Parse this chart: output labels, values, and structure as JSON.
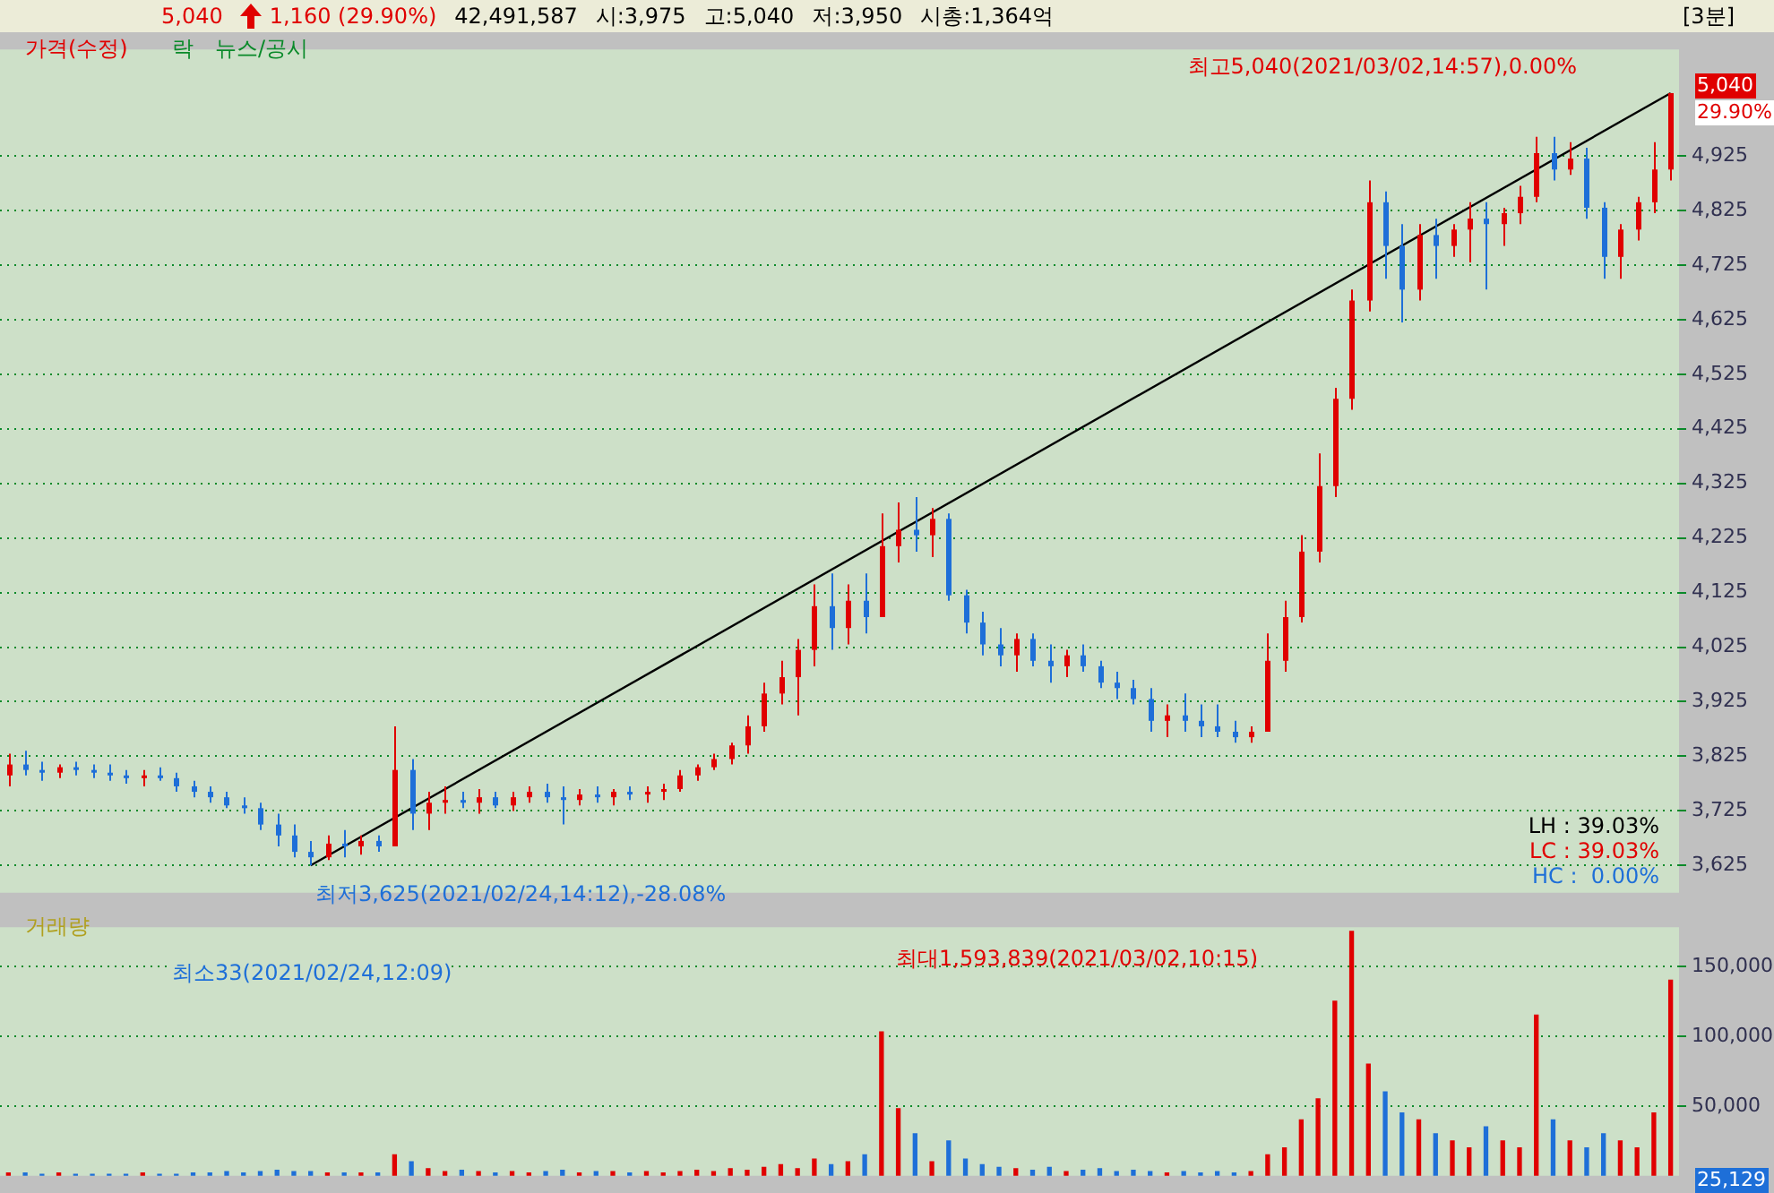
{
  "chart_data": [
    {
      "type": "candlestick",
      "annotations": [
        "5,040",
        "1,160 (29.90%)",
        "42,491,587",
        "시:3,975",
        "고:5,040",
        "저:3,950",
        "시총:1,364억",
        "[3분]",
        "가격(수정)",
        "락",
        "뉴스/공시",
        "LH : 39.03%",
        "LC : 39.03%",
        "HC :  0.00%",
        "29.90%",
        "5,040",
        "최고5,040(2021/03/02,14:57),0.00%",
        "최저3,625(2021/02/24,14:12),-28.08%"
      ],
      "categories": [
        null,
        null,
        null,
        null,
        null,
        null,
        null,
        null,
        null,
        null,
        null,
        null,
        null,
        null,
        null,
        null,
        null,
        null,
        null,
        null,
        null,
        null,
        null,
        null,
        null,
        null,
        null,
        null,
        null,
        null,
        null,
        null,
        null,
        null,
        null,
        null,
        null,
        null,
        null,
        null,
        null,
        null,
        null,
        null,
        null,
        null,
        null,
        null,
        null,
        null,
        null,
        null,
        null,
        null,
        null,
        null,
        null,
        null,
        null,
        null,
        null,
        null,
        null,
        null,
        null,
        null,
        null,
        null,
        null,
        null,
        null,
        null,
        null,
        null,
        null,
        null,
        null,
        null,
        null,
        null,
        null,
        null,
        null,
        null,
        null,
        null,
        null,
        null,
        null,
        null,
        null,
        null,
        null,
        null,
        null,
        null,
        null,
        null,
        null,
        null
      ],
      "ohlc": [
        [
          3790,
          3830,
          3770,
          3810
        ],
        [
          3810,
          3835,
          3790,
          3800
        ],
        [
          3800,
          3815,
          3780,
          3795
        ],
        [
          3795,
          3810,
          3785,
          3805
        ],
        [
          3805,
          3815,
          3790,
          3800
        ],
        [
          3800,
          3810,
          3785,
          3795
        ],
        [
          3795,
          3810,
          3780,
          3790
        ],
        [
          3790,
          3800,
          3775,
          3785
        ],
        [
          3785,
          3800,
          3770,
          3790
        ],
        [
          3790,
          3805,
          3780,
          3785
        ],
        [
          3785,
          3795,
          3760,
          3770
        ],
        [
          3770,
          3780,
          3750,
          3760
        ],
        [
          3760,
          3770,
          3740,
          3750
        ],
        [
          3750,
          3760,
          3730,
          3735
        ],
        [
          3735,
          3750,
          3720,
          3730
        ],
        [
          3730,
          3740,
          3690,
          3700
        ],
        [
          3700,
          3720,
          3660,
          3680
        ],
        [
          3680,
          3700,
          3640,
          3650
        ],
        [
          3650,
          3670,
          3625,
          3640
        ],
        [
          3640,
          3680,
          3635,
          3665
        ],
        [
          3665,
          3690,
          3640,
          3660
        ],
        [
          3660,
          3680,
          3645,
          3670
        ],
        [
          3670,
          3680,
          3650,
          3660
        ],
        [
          3660,
          3880,
          3660,
          3800
        ],
        [
          3800,
          3820,
          3690,
          3720
        ],
        [
          3720,
          3760,
          3690,
          3740
        ],
        [
          3740,
          3770,
          3720,
          3745
        ],
        [
          3745,
          3760,
          3730,
          3740
        ],
        [
          3740,
          3765,
          3720,
          3750
        ],
        [
          3750,
          3760,
          3730,
          3735
        ],
        [
          3735,
          3760,
          3725,
          3750
        ],
        [
          3750,
          3770,
          3740,
          3760
        ],
        [
          3760,
          3775,
          3740,
          3750
        ],
        [
          3750,
          3770,
          3700,
          3745
        ],
        [
          3745,
          3765,
          3735,
          3755
        ],
        [
          3755,
          3770,
          3740,
          3750
        ],
        [
          3750,
          3765,
          3735,
          3760
        ],
        [
          3760,
          3770,
          3745,
          3755
        ],
        [
          3755,
          3770,
          3740,
          3760
        ],
        [
          3760,
          3775,
          3745,
          3765
        ],
        [
          3765,
          3800,
          3760,
          3790
        ],
        [
          3790,
          3810,
          3780,
          3805
        ],
        [
          3805,
          3830,
          3800,
          3820
        ],
        [
          3820,
          3850,
          3810,
          3845
        ],
        [
          3845,
          3900,
          3830,
          3880
        ],
        [
          3880,
          3960,
          3870,
          3940
        ],
        [
          3940,
          4000,
          3920,
          3970
        ],
        [
          3970,
          4040,
          3900,
          4020
        ],
        [
          4020,
          4140,
          3990,
          4100
        ],
        [
          4100,
          4160,
          4020,
          4060
        ],
        [
          4060,
          4140,
          4030,
          4110
        ],
        [
          4110,
          4160,
          4050,
          4080
        ],
        [
          4080,
          4270,
          4080,
          4210
        ],
        [
          4210,
          4290,
          4180,
          4240
        ],
        [
          4240,
          4300,
          4200,
          4230
        ],
        [
          4230,
          4280,
          4190,
          4260
        ],
        [
          4260,
          4270,
          4110,
          4120
        ],
        [
          4120,
          4130,
          4050,
          4070
        ],
        [
          4070,
          4090,
          4010,
          4030
        ],
        [
          4030,
          4060,
          3990,
          4010
        ],
        [
          4010,
          4050,
          3980,
          4040
        ],
        [
          4040,
          4050,
          3990,
          4000
        ],
        [
          4000,
          4030,
          3960,
          3990
        ],
        [
          3990,
          4020,
          3970,
          4010
        ],
        [
          4010,
          4030,
          3980,
          3990
        ],
        [
          3990,
          4000,
          3950,
          3960
        ],
        [
          3960,
          3980,
          3930,
          3950
        ],
        [
          3950,
          3965,
          3920,
          3930
        ],
        [
          3930,
          3950,
          3870,
          3890
        ],
        [
          3890,
          3920,
          3860,
          3900
        ],
        [
          3900,
          3940,
          3870,
          3890
        ],
        [
          3890,
          3920,
          3860,
          3880
        ],
        [
          3880,
          3920,
          3860,
          3870
        ],
        [
          3870,
          3890,
          3850,
          3860
        ],
        [
          3860,
          3880,
          3850,
          3870
        ],
        [
          3870,
          4050,
          3870,
          4000
        ],
        [
          4000,
          4110,
          3980,
          4080
        ],
        [
          4080,
          4230,
          4070,
          4200
        ],
        [
          4200,
          4380,
          4180,
          4320
        ],
        [
          4320,
          4500,
          4300,
          4480
        ],
        [
          4480,
          4680,
          4460,
          4660
        ],
        [
          4660,
          4880,
          4640,
          4840
        ],
        [
          4840,
          4860,
          4700,
          4760
        ],
        [
          4760,
          4800,
          4620,
          4680
        ],
        [
          4680,
          4800,
          4660,
          4780
        ],
        [
          4780,
          4810,
          4700,
          4760
        ],
        [
          4760,
          4800,
          4740,
          4790
        ],
        [
          4790,
          4840,
          4730,
          4810
        ],
        [
          4810,
          4840,
          4680,
          4800
        ],
        [
          4800,
          4830,
          4760,
          4820
        ],
        [
          4820,
          4870,
          4800,
          4850
        ],
        [
          4850,
          4960,
          4840,
          4930
        ],
        [
          4930,
          4960,
          4880,
          4900
        ],
        [
          4900,
          4950,
          4890,
          4920
        ],
        [
          4920,
          4940,
          4810,
          4830
        ],
        [
          4830,
          4840,
          4700,
          4740
        ],
        [
          4740,
          4800,
          4700,
          4790
        ],
        [
          4790,
          4850,
          4770,
          4840
        ],
        [
          4840,
          4950,
          4820,
          4900
        ],
        [
          4900,
          5040,
          4880,
          5040
        ]
      ],
      "colors": [
        "#e00000",
        "#1e6fd8",
        "#1e6fd8",
        "#e00000",
        "#1e6fd8",
        "#1e6fd8",
        "#1e6fd8",
        "#1e6fd8",
        "#e00000",
        "#1e6fd8",
        "#1e6fd8",
        "#1e6fd8",
        "#1e6fd8",
        "#1e6fd8",
        "#1e6fd8",
        "#1e6fd8",
        "#1e6fd8",
        "#1e6fd8",
        "#1e6fd8",
        "#e00000",
        "#1e6fd8",
        "#e00000",
        "#1e6fd8",
        "#e00000",
        "#1e6fd8",
        "#e00000",
        "#e00000",
        "#1e6fd8",
        "#e00000",
        "#1e6fd8",
        "#e00000",
        "#e00000",
        "#1e6fd8",
        "#1e6fd8",
        "#e00000",
        "#1e6fd8",
        "#e00000",
        "#1e6fd8",
        "#e00000",
        "#e00000",
        "#e00000",
        "#e00000",
        "#e00000",
        "#e00000",
        "#e00000",
        "#e00000",
        "#e00000",
        "#e00000",
        "#e00000",
        "#1e6fd8",
        "#e00000",
        "#1e6fd8",
        "#e00000",
        "#e00000",
        "#1e6fd8",
        "#e00000",
        "#1e6fd8",
        "#1e6fd8",
        "#1e6fd8",
        "#1e6fd8",
        "#e00000",
        "#1e6fd8",
        "#1e6fd8",
        "#e00000",
        "#1e6fd8",
        "#1e6fd8",
        "#1e6fd8",
        "#1e6fd8",
        "#1e6fd8",
        "#e00000",
        "#1e6fd8",
        "#1e6fd8",
        "#1e6fd8",
        "#1e6fd8",
        "#e00000",
        "#e00000",
        "#e00000",
        "#e00000",
        "#e00000",
        "#e00000",
        "#e00000",
        "#e00000",
        "#1e6fd8",
        "#1e6fd8",
        "#e00000",
        "#1e6fd8",
        "#e00000",
        "#e00000",
        "#1e6fd8",
        "#e00000",
        "#e00000",
        "#e00000",
        "#1e6fd8",
        "#e00000",
        "#1e6fd8",
        "#1e6fd8",
        "#e00000",
        "#e00000",
        "#e00000",
        "#e00000"
      ],
      "series": [
        {
          "type": "line",
          "color": "#000000",
          "values": [
            null,
            null,
            null,
            null,
            null,
            null,
            null,
            null,
            null,
            null,
            null,
            null,
            null,
            null,
            null,
            null,
            null,
            null,
            3625,
            null,
            null,
            null,
            null,
            null,
            null,
            null,
            null,
            null,
            null,
            null,
            null,
            null,
            null,
            null,
            null,
            null,
            null,
            null,
            null,
            null,
            null,
            null,
            null,
            null,
            null,
            null,
            null,
            null,
            null,
            null,
            null,
            null,
            null,
            null,
            null,
            null,
            null,
            null,
            null,
            null,
            null,
            null,
            null,
            null,
            null,
            null,
            null,
            null,
            null,
            null,
            null,
            null,
            null,
            null,
            null,
            null,
            null,
            null,
            null,
            null,
            null,
            null,
            null,
            null,
            null,
            null,
            null,
            null,
            null,
            null,
            null,
            null,
            null,
            null,
            null,
            null,
            null,
            null,
            null,
            5040
          ]
        }
      ],
      "ylim": [
        3575,
        5120
      ],
      "yticks": [
        {
          "value": 3625,
          "label": "3,625"
        },
        {
          "value": 3725,
          "label": "3,725"
        },
        {
          "value": 3825,
          "label": "3,825"
        },
        {
          "value": 3925,
          "label": "3,925"
        },
        {
          "value": 4025,
          "label": "4,025"
        },
        {
          "value": 4125,
          "label": "4,125"
        },
        {
          "value": 4225,
          "label": "4,225"
        },
        {
          "value": 4325,
          "label": "4,325"
        },
        {
          "value": 4425,
          "label": "4,425"
        },
        {
          "value": 4525,
          "label": "4,525"
        },
        {
          "value": 4625,
          "label": "4,625"
        },
        {
          "value": 4725,
          "label": "4,725"
        },
        {
          "value": 4825,
          "label": "4,825"
        },
        {
          "value": 4925,
          "label": "4,925"
        }
      ],
      "grid": "y",
      "tick_labels": "y"
    },
    {
      "type": "bar",
      "annotations": [
        "거래량",
        "25,129",
        "최대1,593,839(2021/03/02,10:15)",
        "최소33(2021/02/24,12:09)"
      ],
      "categories": [
        null,
        null,
        null,
        null,
        null,
        null,
        null,
        null,
        null,
        null,
        null,
        null,
        null,
        null,
        null,
        null,
        null,
        null,
        null,
        null,
        null,
        null,
        null,
        null,
        null,
        null,
        null,
        null,
        null,
        null,
        null,
        null,
        null,
        null,
        null,
        null,
        null,
        null,
        null,
        null,
        null,
        null,
        null,
        null,
        null,
        null,
        null,
        null,
        null,
        null,
        null,
        null,
        null,
        null,
        null,
        null,
        null,
        null,
        null,
        null,
        null,
        null,
        null,
        null,
        null,
        null,
        null,
        null,
        null,
        null,
        null,
        null,
        null,
        null,
        null,
        null,
        null,
        null,
        null,
        null,
        null,
        null,
        null,
        null,
        null,
        null,
        null,
        null,
        null,
        null,
        null,
        null,
        null,
        null,
        null,
        null,
        null,
        null,
        null,
        null
      ],
      "values": [
        2000,
        2000,
        1000,
        2000,
        1000,
        1000,
        1000,
        1000,
        2000,
        1000,
        1000,
        2000,
        2000,
        3000,
        2000,
        3000,
        4000,
        3000,
        3000,
        2000,
        2000,
        2000,
        2000,
        15000,
        10000,
        5000,
        3000,
        4000,
        3000,
        2000,
        3000,
        2000,
        3000,
        4000,
        2000,
        3000,
        3000,
        2000,
        3000,
        2000,
        3000,
        4000,
        3000,
        5000,
        4000,
        6000,
        8000,
        5000,
        12000,
        8000,
        10000,
        15000,
        103000,
        48000,
        30000,
        10000,
        25000,
        12000,
        8000,
        6000,
        5000,
        4000,
        6000,
        3000,
        4000,
        5000,
        3000,
        4000,
        3000,
        2000,
        3000,
        2000,
        3000,
        2000,
        3000,
        15000,
        20000,
        40000,
        55000,
        125000,
        175000,
        80000,
        60000,
        45000,
        40000,
        30000,
        25000,
        20000,
        35000,
        25000,
        20000,
        115000,
        40000,
        25000,
        20000,
        30000,
        25000,
        20000,
        45000,
        140000
      ],
      "colors": [
        "#e00000",
        "#1e6fd8",
        "#1e6fd8",
        "#e00000",
        "#1e6fd8",
        "#1e6fd8",
        "#1e6fd8",
        "#1e6fd8",
        "#e00000",
        "#1e6fd8",
        "#1e6fd8",
        "#1e6fd8",
        "#1e6fd8",
        "#1e6fd8",
        "#1e6fd8",
        "#1e6fd8",
        "#1e6fd8",
        "#1e6fd8",
        "#1e6fd8",
        "#e00000",
        "#1e6fd8",
        "#e00000",
        "#1e6fd8",
        "#e00000",
        "#1e6fd8",
        "#e00000",
        "#e00000",
        "#1e6fd8",
        "#e00000",
        "#1e6fd8",
        "#e00000",
        "#e00000",
        "#1e6fd8",
        "#1e6fd8",
        "#e00000",
        "#1e6fd8",
        "#e00000",
        "#1e6fd8",
        "#e00000",
        "#e00000",
        "#e00000",
        "#e00000",
        "#e00000",
        "#e00000",
        "#e00000",
        "#e00000",
        "#e00000",
        "#e00000",
        "#e00000",
        "#1e6fd8",
        "#e00000",
        "#1e6fd8",
        "#e00000",
        "#e00000",
        "#1e6fd8",
        "#e00000",
        "#1e6fd8",
        "#1e6fd8",
        "#1e6fd8",
        "#1e6fd8",
        "#e00000",
        "#1e6fd8",
        "#1e6fd8",
        "#e00000",
        "#1e6fd8",
        "#1e6fd8",
        "#1e6fd8",
        "#1e6fd8",
        "#1e6fd8",
        "#e00000",
        "#1e6fd8",
        "#1e6fd8",
        "#1e6fd8",
        "#1e6fd8",
        "#e00000",
        "#e00000",
        "#e00000",
        "#e00000",
        "#e00000",
        "#e00000",
        "#e00000",
        "#e00000",
        "#1e6fd8",
        "#1e6fd8",
        "#e00000",
        "#1e6fd8",
        "#e00000",
        "#e00000",
        "#1e6fd8",
        "#e00000",
        "#e00000",
        "#e00000",
        "#1e6fd8",
        "#e00000",
        "#1e6fd8",
        "#1e6fd8",
        "#e00000",
        "#e00000",
        "#e00000",
        "#e00000"
      ],
      "ylim": [
        0,
        178000
      ],
      "yticks": [
        {
          "value": 50000,
          "label": "50,000"
        },
        {
          "value": 100000,
          "label": "100,000"
        },
        {
          "value": 150000,
          "label": "150,000"
        }
      ],
      "grid": "y",
      "tick_labels": "y"
    }
  ]
}
